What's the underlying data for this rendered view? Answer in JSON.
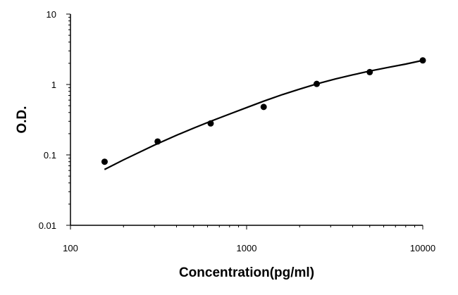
{
  "chart_data": {
    "type": "scatter",
    "title": "",
    "xlabel": "Concentration(pg/ml)",
    "ylabel": "O.D.",
    "x_scale": "log",
    "y_scale": "log",
    "xlim": [
      100,
      10000
    ],
    "ylim": [
      0.01,
      10
    ],
    "x_ticks": [
      {
        "value": 100,
        "label": "100"
      },
      {
        "value": 1000,
        "label": "1000"
      },
      {
        "value": 10000,
        "label": "10000"
      }
    ],
    "y_ticks": [
      {
        "value": 10,
        "label": "10"
      },
      {
        "value": 1,
        "label": "1"
      },
      {
        "value": 0.1,
        "label": "0.1"
      },
      {
        "value": 0.01,
        "label": "0.01"
      }
    ],
    "grid": false,
    "legend": "none",
    "series": [
      {
        "kind": "points",
        "x": [
          156.25,
          312.5,
          625,
          1250,
          2500,
          5000,
          10000
        ],
        "y": [
          0.08,
          0.155,
          0.28,
          0.48,
          1.02,
          1.5,
          2.2
        ]
      },
      {
        "kind": "fit-curve",
        "x": [
          156,
          200,
          300,
          400,
          500,
          625,
          800,
          1000,
          1250,
          1600,
          2000,
          2500,
          3200,
          4000,
          5000,
          6300,
          8000,
          10000
        ],
        "y": [
          0.062,
          0.085,
          0.138,
          0.19,
          0.24,
          0.3,
          0.38,
          0.47,
          0.58,
          0.72,
          0.86,
          1.02,
          1.2,
          1.37,
          1.55,
          1.74,
          1.95,
          2.2
        ]
      }
    ],
    "colors": {
      "marker": "#000000",
      "line": "#000000",
      "axis": "#000000"
    }
  }
}
